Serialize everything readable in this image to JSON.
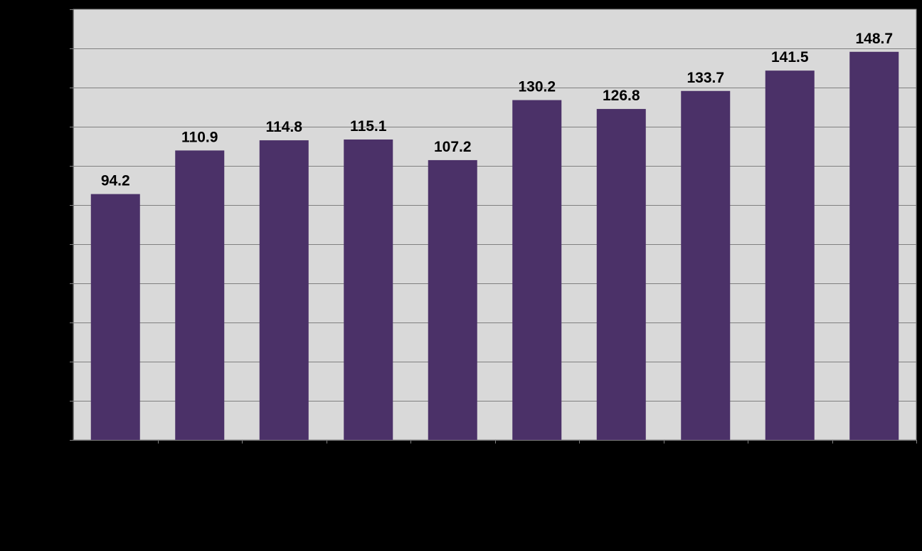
{
  "chart_data": {
    "type": "bar",
    "title": "",
    "xlabel": "",
    "ylabel": "",
    "categories": [
      "",
      "",
      "",
      "",
      "",
      "",
      "",
      "",
      "",
      ""
    ],
    "values": [
      94.2,
      110.9,
      114.8,
      115.1,
      107.2,
      130.2,
      126.8,
      133.7,
      141.5,
      148.7
    ],
    "value_labels": [
      "94.2",
      "110.9",
      "114.8",
      "115.1",
      "107.2",
      "130.2",
      "126.8",
      "133.7",
      "141.5",
      "148.7"
    ],
    "ylim": [
      0,
      165
    ],
    "ytick_step": 15,
    "grid": true,
    "legend": "none",
    "colors": {
      "background": "#000000",
      "plot_area": "#d9d9d9",
      "bar": "#4b3168",
      "gridline": "#808080",
      "axis": "#808080"
    }
  }
}
